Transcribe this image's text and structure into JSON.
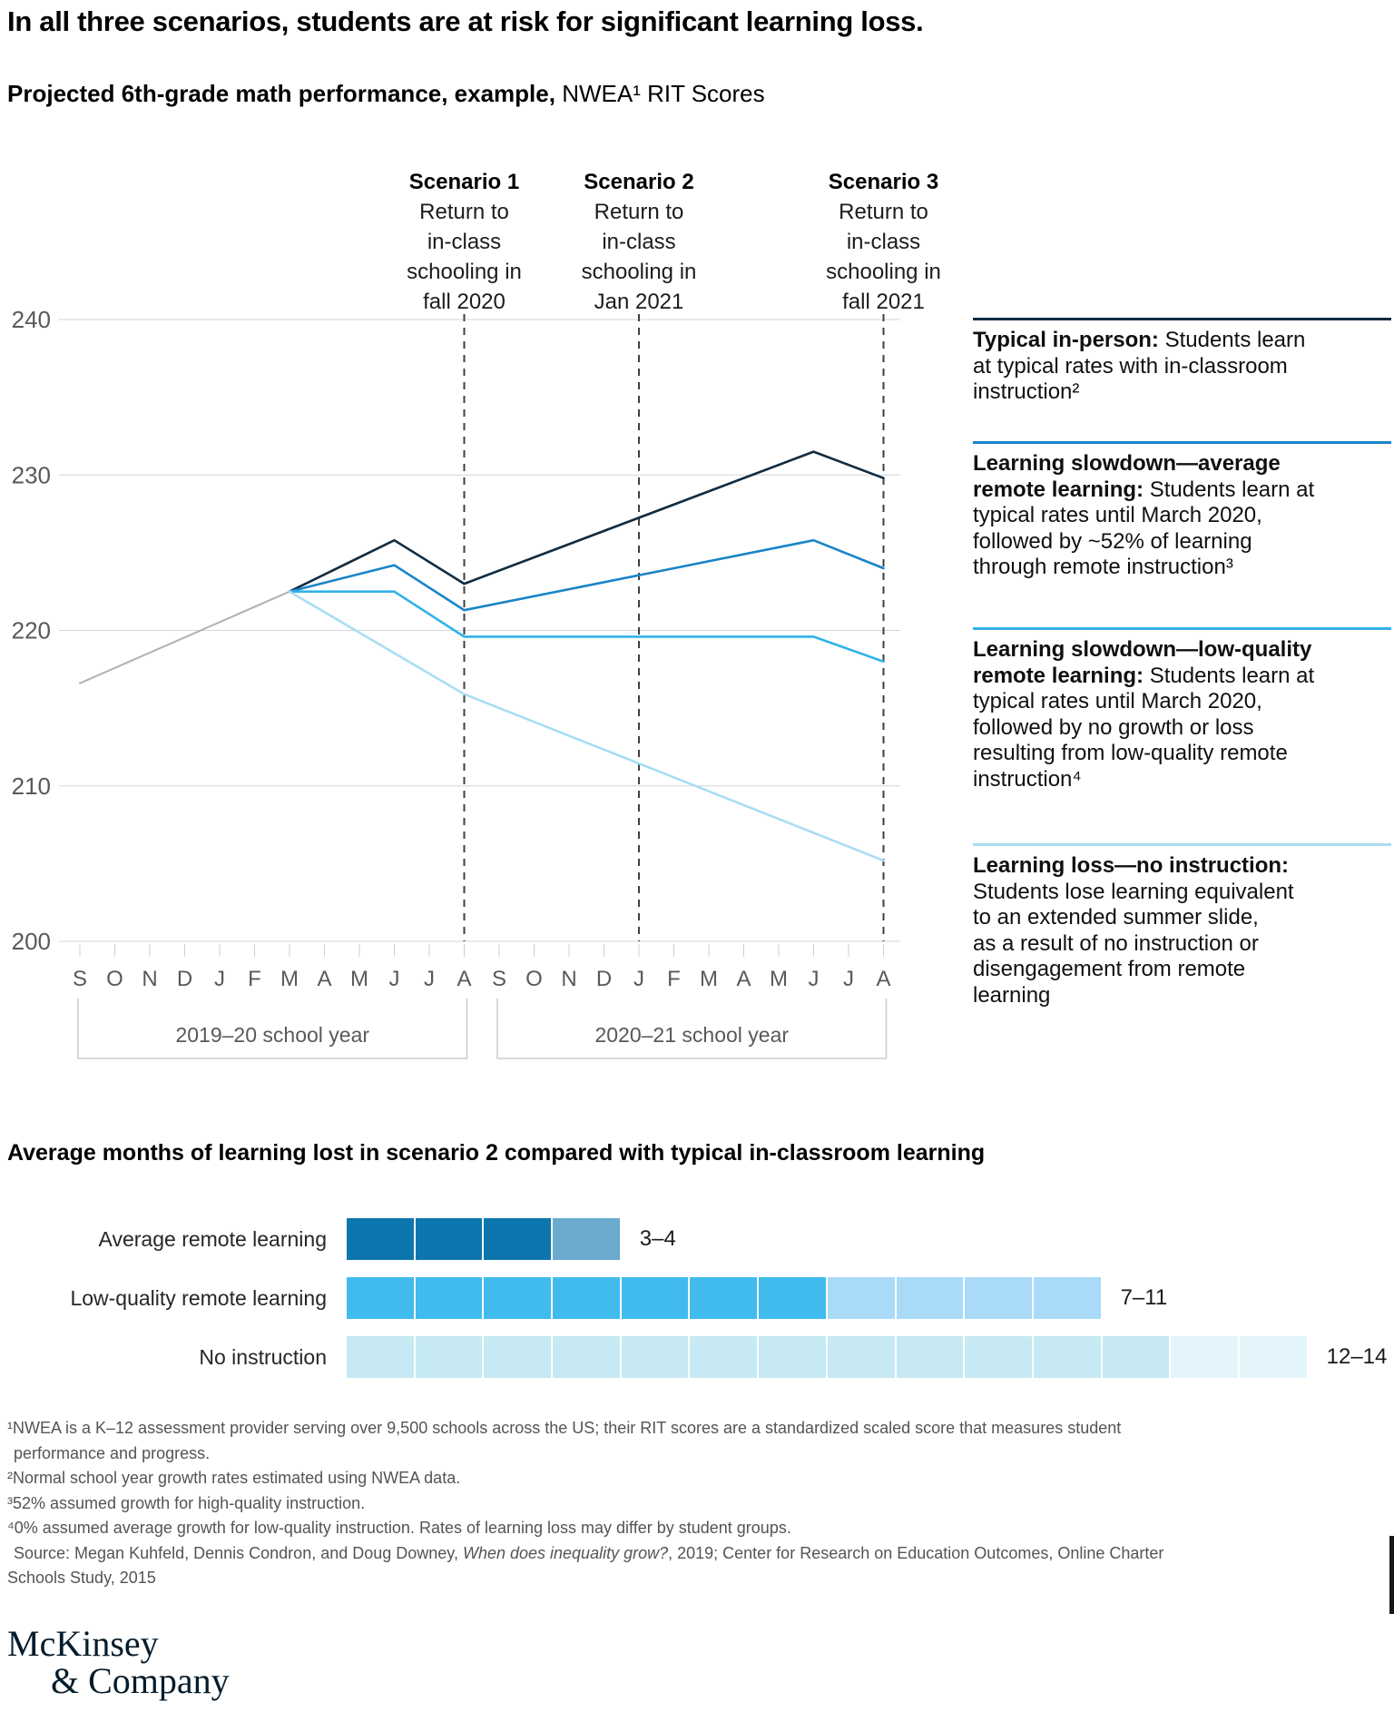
{
  "title": "In all three scenarios, students are at risk for significant learning loss.",
  "subtitle": {
    "bold": "Projected 6th-grade math performance, example,",
    "regular": " NWEA¹ RIT Scores"
  },
  "chart_data": [
    {
      "type": "line",
      "title": "Projected 6th-grade math performance, NWEA RIT Scores",
      "x_range": "Sep 2019 – Aug 2021",
      "months": [
        "S",
        "O",
        "N",
        "D",
        "J",
        "F",
        "M",
        "A",
        "M",
        "J",
        "J",
        "A",
        "S",
        "O",
        "N",
        "D",
        "J",
        "F",
        "M",
        "A",
        "M",
        "J",
        "J",
        "A"
      ],
      "y_axis": {
        "min": 200,
        "max": 240,
        "step": 10,
        "gridlines": [
          240,
          230,
          220,
          210,
          200
        ]
      },
      "grid": true,
      "legend_position": "right",
      "scenarios": [
        {
          "name": "Scenario 1",
          "lines": [
            "Return to",
            "in-class",
            "schooling in",
            "fall 2020"
          ],
          "month_index": 11
        },
        {
          "name": "Scenario 2",
          "lines": [
            "Return to",
            "in-class",
            "schooling in",
            "Jan 2021"
          ],
          "month_index": 16
        },
        {
          "name": "Scenario 3",
          "lines": [
            "Return to",
            "in-class",
            "schooling in",
            "fall 2021"
          ],
          "month_index": 23
        }
      ],
      "school_years": [
        {
          "label": "2019–20 school year",
          "from_month": 0,
          "to_month": 11
        },
        {
          "label": "2020–21 school year",
          "from_month": 12,
          "to_month": 23
        }
      ],
      "series": [
        {
          "name": "Typical growth before March 2020",
          "color": "#b1b1b1",
          "points": [
            [
              0,
              216.6
            ],
            [
              6,
              222.5
            ]
          ]
        },
        {
          "name": "Typical in-person",
          "color": "#102c42",
          "points": [
            [
              6,
              222.5
            ],
            [
              9,
              225.8
            ],
            [
              11,
              223.0
            ],
            [
              21,
              231.5
            ],
            [
              23,
              229.8
            ]
          ]
        },
        {
          "name": "Learning slowdown—average remote learning",
          "color": "#1a85c8",
          "points": [
            [
              6,
              222.5
            ],
            [
              9,
              224.2
            ],
            [
              11,
              221.3
            ],
            [
              21,
              225.8
            ],
            [
              23,
              224.0
            ]
          ]
        },
        {
          "name": "Learning slowdown—low-quality remote learning",
          "color": "#30b2ea",
          "points": [
            [
              6,
              222.5
            ],
            [
              9,
              222.5
            ],
            [
              11,
              219.6
            ],
            [
              21,
              219.6
            ],
            [
              23,
              218.0
            ]
          ]
        },
        {
          "name": "Learning loss—no instruction",
          "color": "#a9ddf4",
          "points": [
            [
              6,
              222.5
            ],
            [
              11,
              215.9
            ],
            [
              23,
              205.2
            ]
          ]
        }
      ]
    },
    {
      "type": "bar",
      "title": "Average months of learning lost in scenario 2 compared with typical in-classroom learning",
      "unit": "months",
      "categories": [
        "Average remote learning",
        "Low-quality remote learning",
        "No instruction"
      ],
      "values": [
        "3–4",
        "7–11",
        "12–14"
      ],
      "rows": [
        {
          "label": "Average remote learning",
          "value_label": "3–4",
          "min": 3,
          "max": 4,
          "segments": [
            {
              "count": 3,
              "color": "#0d76ae"
            },
            {
              "count": 1,
              "color": "#6aaacd"
            }
          ]
        },
        {
          "label": "Low-quality remote learning",
          "value_label": "7–11",
          "min": 7,
          "max": 11,
          "segments": [
            {
              "count": 7,
              "color": "#41bbee"
            },
            {
              "count": 4,
              "color": "#a9daf7"
            }
          ]
        },
        {
          "label": "No instruction",
          "value_label": "12–14",
          "min": 12,
          "max": 14,
          "segments": [
            {
              "count": 12,
              "color": "#c6e9f3"
            },
            {
              "count": 2,
              "color": "#e3f5fa"
            }
          ]
        }
      ]
    }
  ],
  "legend": {
    "entries": [
      {
        "rule_color": "#102c42",
        "lead": "Typical in-person:",
        "text": " Students learn\nat typical rates with in-classroom\ninstruction²"
      },
      {
        "rule_color": "#1a85c8",
        "lead": "Learning slowdown—average\nremote learning:",
        "text": " Students learn at\ntypical rates until March 2020,\nfollowed by ~52% of learning\nthrough remote instruction³"
      },
      {
        "rule_color": "#30b2ea",
        "lead": "Learning slowdown—low-quality\nremote learning:",
        "text": " Students learn at\ntypical rates until March 2020,\nfollowed by no growth or loss\nresulting from low-quality remote\ninstruction⁴"
      },
      {
        "rule_color": "#a9ddf4",
        "lead": "Learning loss—no instruction:",
        "text": "\nStudents lose learning equivalent\nto an extended summer slide,\nas a result of no instruction or\ndisengagement from remote\nlearning"
      }
    ]
  },
  "footnotes": [
    "¹NWEA is a K–12 assessment provider serving over 9,500 schools across the US; their RIT scores are a standardized scaled score that measures student",
    "performance and progress.",
    "²Normal school year growth rates estimated using NWEA data.",
    "³52% assumed growth for high-quality instruction.",
    "⁴0% assumed average growth for low-quality instruction. Rates of learning loss may differ by student groups."
  ],
  "source": {
    "pre": "Source: Megan Kuhfeld, Dennis Condron, and Doug Downey, ",
    "italic": "When does inequality grow?",
    "post": ", 2019; Center for Research on Education Outcomes, Online Charter",
    "line2": "Schools Study, 2015"
  },
  "logo": {
    "line1": "McKinsey",
    "line2": "& Company"
  }
}
